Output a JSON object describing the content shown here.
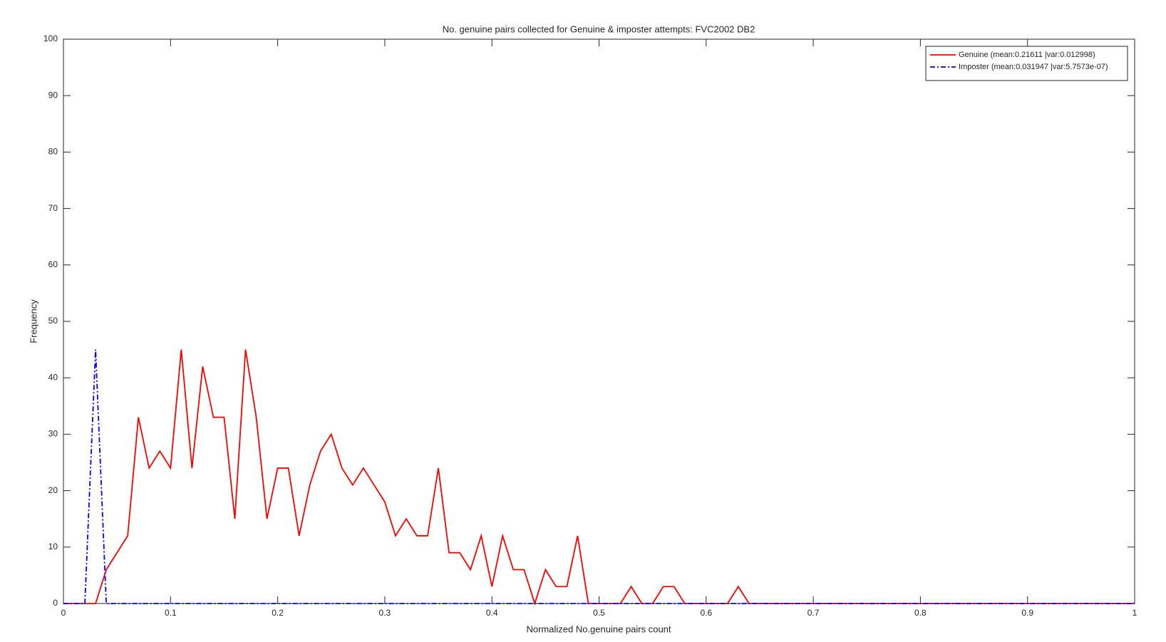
{
  "chart_data": {
    "type": "line",
    "title": "No. genuine pairs collected for Genuine & imposter attempts: FVC2002 DB2",
    "x_label": "Normalized No.genuine pairs count",
    "y_label": "Frequency",
    "x": [
      0,
      0.01,
      0.02,
      0.03,
      0.04,
      0.05,
      0.06,
      0.07,
      0.08,
      0.09,
      0.1,
      0.11,
      0.12,
      0.13,
      0.14,
      0.15,
      0.16,
      0.17,
      0.18,
      0.19,
      0.2,
      0.21,
      0.22,
      0.23,
      0.24,
      0.25,
      0.26,
      0.27,
      0.28,
      0.29,
      0.3,
      0.31,
      0.32,
      0.33,
      0.34,
      0.35,
      0.36,
      0.37,
      0.38,
      0.39,
      0.4,
      0.41,
      0.42,
      0.43,
      0.44,
      0.45,
      0.46,
      0.47,
      0.48,
      0.49,
      0.5,
      0.51,
      0.52,
      0.53,
      0.54,
      0.55,
      0.56,
      0.57,
      0.58,
      0.59,
      0.6,
      0.61,
      0.62,
      0.63,
      0.64,
      0.65,
      0.66,
      0.67,
      0.68,
      0.69,
      0.7,
      0.71,
      0.72,
      0.73,
      0.74,
      0.75,
      0.76,
      0.77,
      0.78,
      0.79,
      0.8,
      0.81,
      0.82,
      0.83,
      0.84,
      0.85,
      0.86,
      0.87,
      0.88,
      0.89,
      0.9,
      0.91,
      0.92,
      0.93,
      0.94,
      0.95,
      0.96,
      0.97,
      0.98,
      0.99,
      1
    ],
    "series": [
      {
        "name": "Genuine (mean:0.21611 |var:0.012998)",
        "color": "#ff0000",
        "dash": "solid",
        "values": [
          0,
          0,
          0,
          0,
          6,
          9,
          12,
          33,
          24,
          27,
          24,
          45,
          24,
          42,
          33,
          33,
          15,
          45,
          33,
          15,
          24,
          24,
          12,
          21,
          27,
          30,
          24,
          21,
          24,
          21,
          18,
          12,
          15,
          12,
          12,
          24,
          9,
          9,
          6,
          12,
          3,
          12,
          6,
          6,
          0,
          6,
          3,
          3,
          12,
          0,
          0,
          0,
          0,
          3,
          0,
          0,
          3,
          3,
          0,
          0,
          0,
          0,
          0,
          3,
          0,
          0,
          0,
          0,
          0,
          0,
          0,
          0,
          0,
          0,
          0,
          0,
          0,
          0,
          0,
          0,
          0,
          0,
          0,
          0,
          0,
          0,
          0,
          0,
          0,
          0,
          0,
          0,
          0,
          0,
          0,
          0,
          0,
          0,
          0,
          0,
          0
        ]
      },
      {
        "name": "Imposter (mean:0.031947 |var:5.7573e-07)",
        "color": "#0000ff",
        "dash": "dashdot",
        "values": [
          0,
          0,
          0,
          45,
          0,
          0,
          0,
          0,
          0,
          0,
          0,
          0,
          0,
          0,
          0,
          0,
          0,
          0,
          0,
          0,
          0,
          0,
          0,
          0,
          0,
          0,
          0,
          0,
          0,
          0,
          0,
          0,
          0,
          0,
          0,
          0,
          0,
          0,
          0,
          0,
          0,
          0,
          0,
          0,
          0,
          0,
          0,
          0,
          0,
          0,
          0,
          0,
          0,
          0,
          0,
          0,
          0,
          0,
          0,
          0,
          0,
          0,
          0,
          0,
          0,
          0,
          0,
          0,
          0,
          0,
          0,
          0,
          0,
          0,
          0,
          0,
          0,
          0,
          0,
          0,
          0,
          0,
          0,
          0,
          0,
          0,
          0,
          0,
          0,
          0,
          0,
          0,
          0,
          0,
          0,
          0,
          0,
          0,
          0,
          0,
          0
        ]
      }
    ],
    "xlim": [
      0,
      1
    ],
    "xticks": [
      0,
      0.1,
      0.2,
      0.3,
      0.4,
      0.5,
      0.6,
      0.7,
      0.8,
      0.9,
      1
    ],
    "ylim": [
      0,
      100
    ],
    "yticks": [
      0,
      10,
      20,
      30,
      40,
      50,
      60,
      70,
      80,
      90,
      100
    ],
    "grid": false,
    "legend": "northeast"
  }
}
